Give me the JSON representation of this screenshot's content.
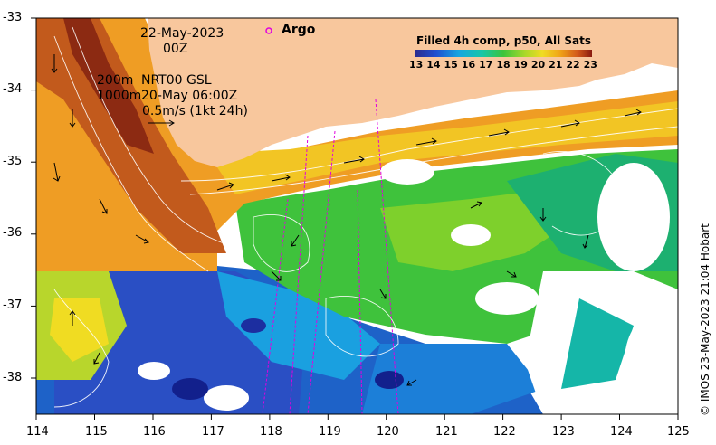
{
  "map": {
    "date": "22-May-2023",
    "hour": "00Z",
    "depth_200m": "200m",
    "depth_1000m": "1000m",
    "product": "NRT00 GSL",
    "product_time": "20-May 06:00Z",
    "scale_arrow_label": "0.5m/s (1kt 24h)",
    "argo_label": "Argo",
    "credit": "© IMOS 23-May-2023 21:04 Hobart",
    "colorbar": {
      "title": "Filled 4h comp, p50, All Sats",
      "ticks": [
        "13",
        "14",
        "15",
        "16",
        "17",
        "18",
        "19",
        "20",
        "21",
        "22",
        "23"
      ]
    },
    "lon_ticks": [
      "114",
      "115",
      "116",
      "117",
      "118",
      "119",
      "120",
      "121",
      "122",
      "123",
      "124",
      "125"
    ],
    "lat_ticks": [
      "-33",
      "-34",
      "-35",
      "-36",
      "-37",
      "-38"
    ],
    "colors": {
      "land": "#f8c79d",
      "no_data": "#ffffff",
      "argo_marker": "#e000e0"
    }
  }
}
